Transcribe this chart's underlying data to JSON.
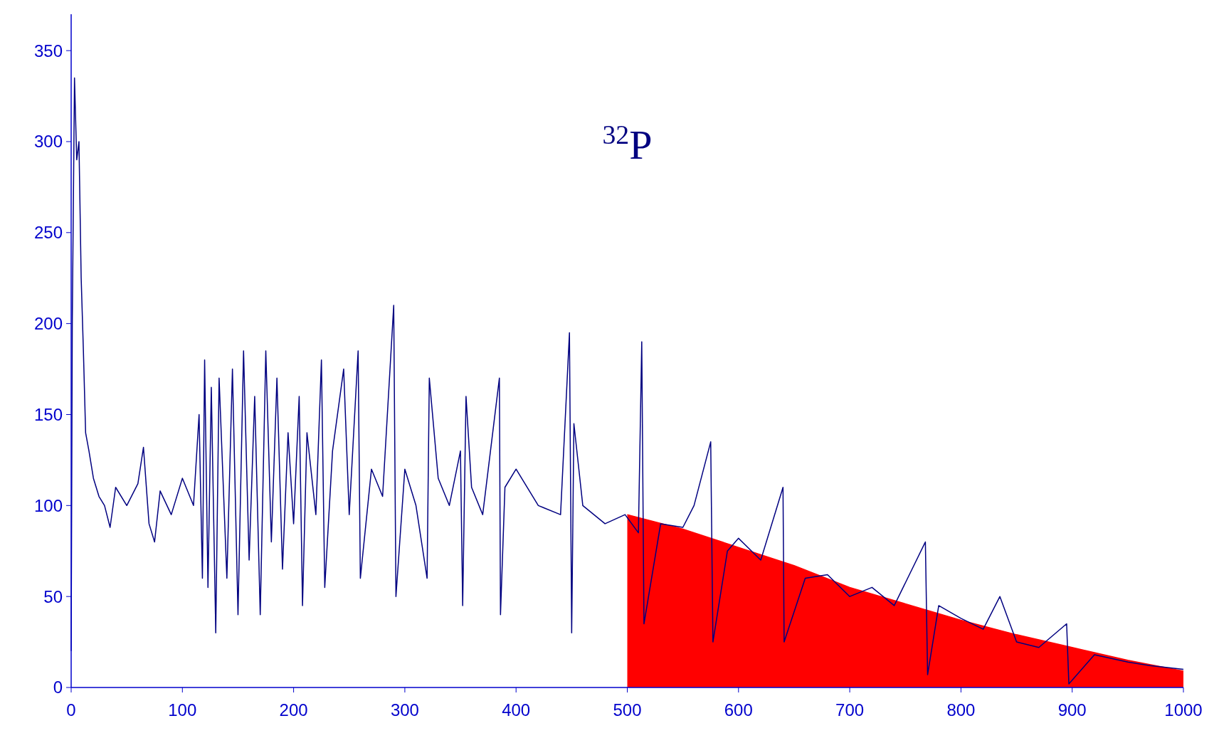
{
  "chart_data": {
    "type": "line",
    "title": "$^{32}$P",
    "xlim": [
      0,
      1000
    ],
    "ylim": [
      0,
      370
    ],
    "xticks": [
      0,
      100,
      200,
      300,
      400,
      500,
      600,
      700,
      800,
      900,
      1000
    ],
    "yticks": [
      0,
      50,
      100,
      150,
      200,
      250,
      300,
      350
    ],
    "grid": false,
    "marker": "none",
    "line_style": "solid",
    "series": [
      {
        "type": "area",
        "color": "#ff0000",
        "x": [
          500,
          550,
          600,
          650,
          700,
          750,
          800,
          850,
          900,
          950,
          1000
        ],
        "values": [
          95,
          87,
          77,
          67,
          55,
          46,
          37,
          29,
          22,
          15,
          9
        ]
      },
      {
        "type": "line",
        "color": "#000080",
        "x": [
          0,
          1,
          3,
          5,
          7,
          9,
          11,
          13,
          16,
          20,
          25,
          30,
          35,
          40,
          50,
          60,
          65,
          70,
          75,
          80,
          90,
          100,
          110,
          115,
          118,
          120,
          123,
          126,
          130,
          133,
          140,
          145,
          150,
          155,
          160,
          165,
          170,
          175,
          180,
          185,
          190,
          195,
          200,
          205,
          208,
          212,
          220,
          225,
          228,
          235,
          245,
          250,
          258,
          260,
          270,
          280,
          290,
          292,
          300,
          310,
          320,
          322,
          330,
          340,
          350,
          352,
          355,
          360,
          370,
          385,
          386,
          390,
          400,
          420,
          440,
          448,
          450,
          452,
          460,
          480,
          498,
          510,
          513,
          515,
          530,
          550,
          560,
          575,
          577,
          590,
          600,
          620,
          640,
          641,
          660,
          680,
          700,
          720,
          740,
          768,
          770,
          780,
          800,
          820,
          835,
          850,
          870,
          895,
          897,
          920,
          950,
          970,
          1000
        ],
        "values": [
          20,
          200,
          335,
          290,
          300,
          225,
          185,
          140,
          130,
          115,
          105,
          100,
          88,
          110,
          100,
          112,
          132,
          90,
          80,
          108,
          95,
          115,
          100,
          150,
          60,
          180,
          55,
          165,
          30,
          170,
          60,
          175,
          40,
          185,
          70,
          160,
          40,
          185,
          80,
          170,
          65,
          140,
          90,
          160,
          45,
          140,
          95,
          180,
          55,
          130,
          175,
          95,
          185,
          60,
          120,
          105,
          210,
          50,
          120,
          100,
          60,
          170,
          115,
          100,
          130,
          45,
          160,
          110,
          95,
          170,
          40,
          110,
          120,
          100,
          95,
          195,
          30,
          145,
          100,
          90,
          95,
          85,
          190,
          35,
          90,
          88,
          100,
          135,
          25,
          75,
          82,
          70,
          110,
          25,
          60,
          62,
          50,
          55,
          45,
          80,
          7,
          45,
          38,
          32,
          50,
          25,
          22,
          35,
          2,
          18,
          14,
          12,
          10
        ]
      }
    ]
  }
}
